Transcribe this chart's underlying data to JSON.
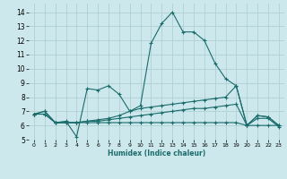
{
  "xlabel": "Humidex (Indice chaleur)",
  "bg_color": "#cce8ec",
  "grid_color": "#b0d0d4",
  "line_color": "#1a6b6b",
  "xlim": [
    -0.5,
    23.5
  ],
  "ylim": [
    5,
    14.6
  ],
  "xticks": [
    0,
    1,
    2,
    3,
    4,
    5,
    6,
    7,
    8,
    9,
    10,
    11,
    12,
    13,
    14,
    15,
    16,
    17,
    18,
    19,
    20,
    21,
    22,
    23
  ],
  "yticks": [
    5,
    6,
    7,
    8,
    9,
    10,
    11,
    12,
    13,
    14
  ],
  "series": [
    {
      "x": [
        0,
        1,
        2,
        3,
        4,
        5,
        6,
        7,
        8,
        9,
        10,
        11,
        12,
        13,
        14,
        15,
        16,
        17,
        18,
        19,
        20,
        21,
        22,
        23
      ],
      "y": [
        6.8,
        7.0,
        6.2,
        6.3,
        5.2,
        8.6,
        8.5,
        8.8,
        8.2,
        7.0,
        7.4,
        11.8,
        13.2,
        14.0,
        12.6,
        12.6,
        12.0,
        10.4,
        9.3,
        8.8,
        6.0,
        6.7,
        6.6,
        6.0
      ]
    },
    {
      "x": [
        0,
        1,
        2,
        3,
        4,
        5,
        6,
        7,
        8,
        9,
        10,
        11,
        12,
        13,
        14,
        15,
        16,
        17,
        18,
        19,
        20,
        21,
        22,
        23
      ],
      "y": [
        6.8,
        7.0,
        6.2,
        6.2,
        6.2,
        6.3,
        6.4,
        6.5,
        6.7,
        7.0,
        7.2,
        7.3,
        7.4,
        7.5,
        7.6,
        7.7,
        7.8,
        7.9,
        8.0,
        8.8,
        6.0,
        6.7,
        6.6,
        6.0
      ]
    },
    {
      "x": [
        0,
        1,
        2,
        3,
        4,
        5,
        6,
        7,
        8,
        9,
        10,
        11,
        12,
        13,
        14,
        15,
        16,
        17,
        18,
        19,
        20,
        21,
        22,
        23
      ],
      "y": [
        6.8,
        6.8,
        6.2,
        6.2,
        6.2,
        6.2,
        6.2,
        6.2,
        6.2,
        6.2,
        6.2,
        6.2,
        6.2,
        6.2,
        6.2,
        6.2,
        6.2,
        6.2,
        6.2,
        6.2,
        6.0,
        6.0,
        6.0,
        6.0
      ]
    },
    {
      "x": [
        0,
        1,
        2,
        3,
        4,
        5,
        6,
        7,
        8,
        9,
        10,
        11,
        12,
        13,
        14,
        15,
        16,
        17,
        18,
        19,
        20,
        21,
        22,
        23
      ],
      "y": [
        6.8,
        6.8,
        6.2,
        6.2,
        6.2,
        6.3,
        6.3,
        6.4,
        6.5,
        6.6,
        6.7,
        6.8,
        6.9,
        7.0,
        7.1,
        7.2,
        7.2,
        7.3,
        7.4,
        7.5,
        6.0,
        6.5,
        6.5,
        5.9
      ]
    }
  ]
}
